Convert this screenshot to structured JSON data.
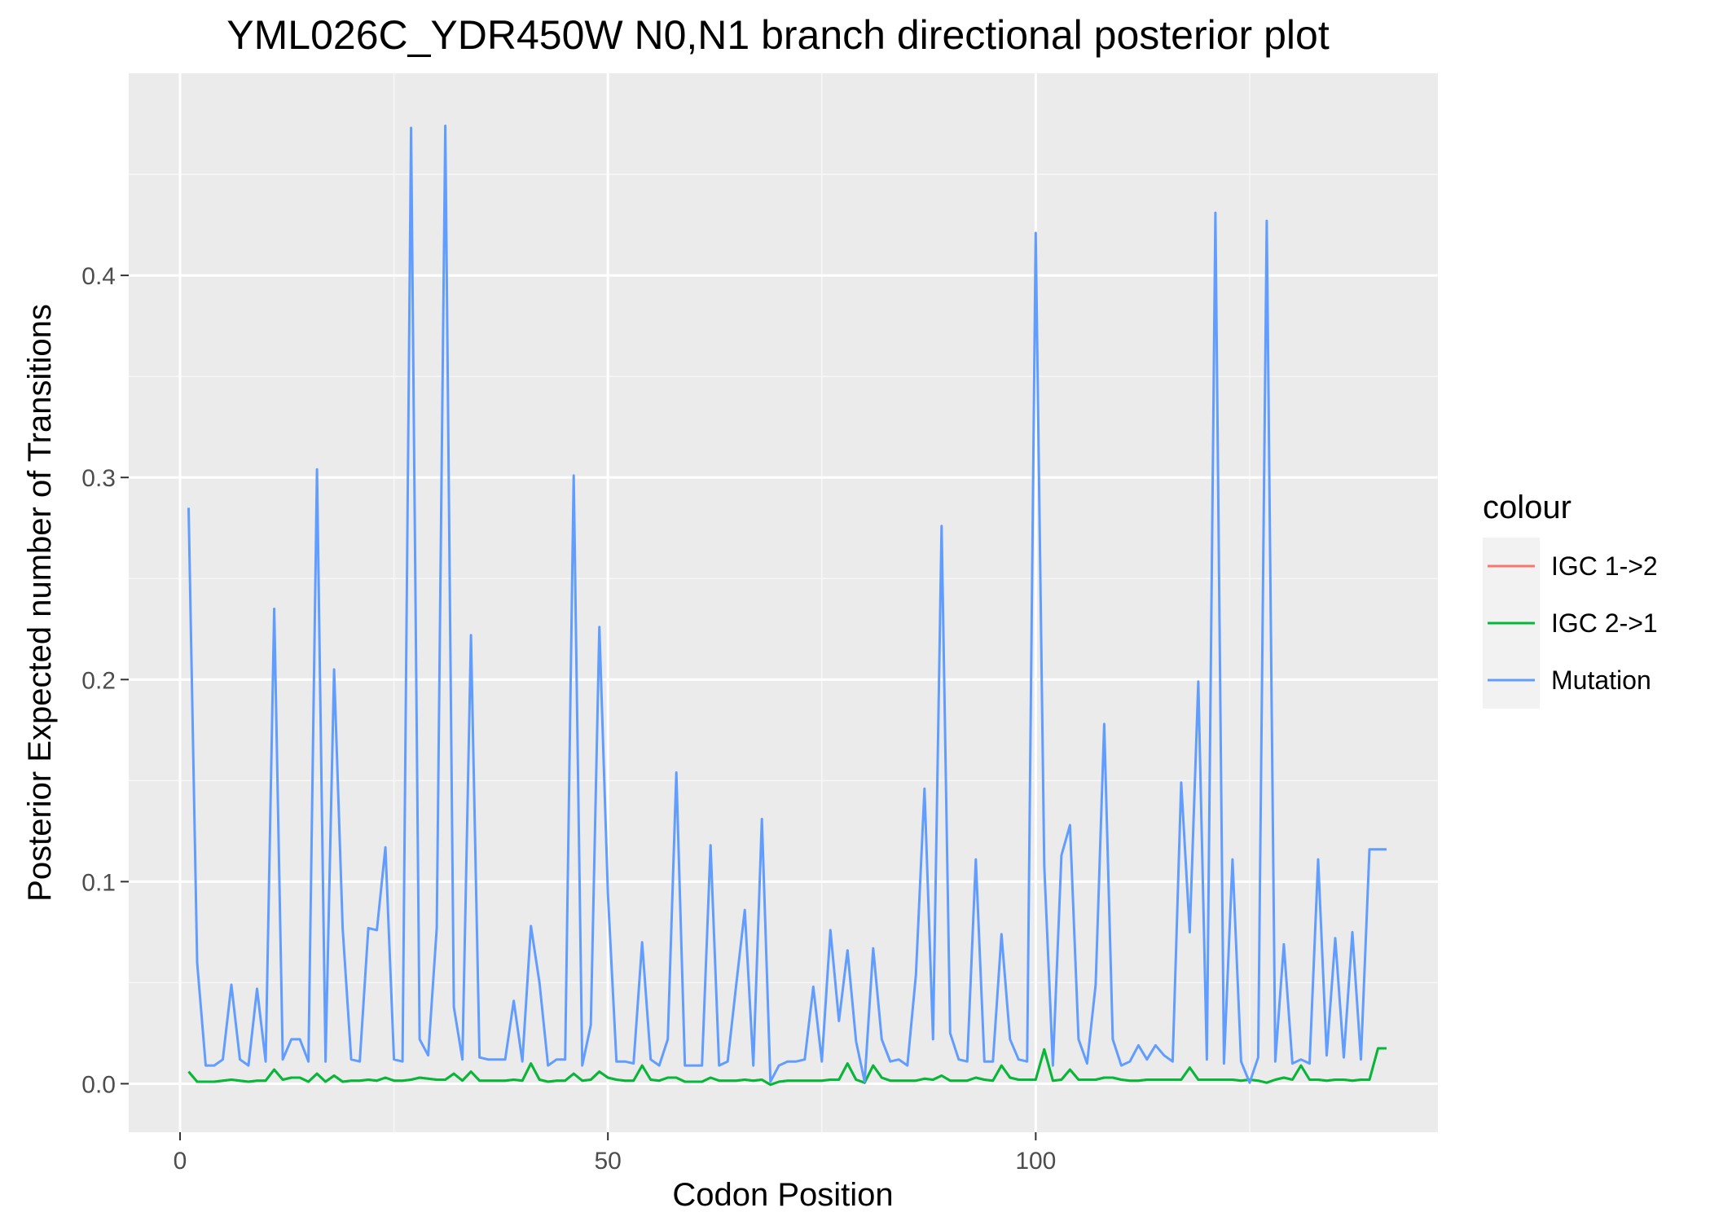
{
  "chart_data": {
    "type": "line",
    "title": "YML026C_YDR450W N0,N1 branch directional posterior plot",
    "xlabel": "Codon Position",
    "ylabel": "Posterior Expected number of Transitions",
    "xlim": [
      -6,
      147
    ],
    "ylim": [
      -0.024,
      0.5
    ],
    "xticks": [
      0,
      50,
      100
    ],
    "xtick_labels": [
      "0",
      "50",
      "100"
    ],
    "yticks": [
      0.0,
      0.1,
      0.2,
      0.3,
      0.4
    ],
    "ytick_labels": [
      "0.0",
      "0.1",
      "0.2",
      "0.3",
      "0.4"
    ],
    "grid": true,
    "legend": {
      "title": "colour",
      "placement": "right",
      "entries": [
        "IGC 1->2",
        "IGC 2->1",
        "Mutation"
      ]
    },
    "series": [
      {
        "name": "IGC 1->2",
        "color": "#F8766D",
        "x": [
          1,
          2,
          3,
          4,
          5,
          6,
          7,
          8,
          9,
          10,
          11,
          12,
          13,
          14,
          15,
          16,
          17,
          18,
          19,
          20,
          21,
          22,
          23,
          24,
          25,
          26,
          27,
          28,
          29,
          30,
          31,
          32,
          33,
          34,
          35,
          36,
          37,
          38,
          39,
          40,
          41,
          42,
          43,
          44,
          45,
          46,
          47,
          48,
          49,
          50,
          51,
          52,
          53,
          54,
          55,
          56,
          57,
          58,
          59,
          60,
          61,
          62,
          63,
          64,
          65,
          66,
          67,
          68,
          69,
          70,
          71,
          72,
          73,
          74,
          75,
          76,
          77,
          78,
          79,
          80,
          81,
          82,
          83,
          84,
          85,
          86,
          87,
          88,
          89,
          90,
          91,
          92,
          93,
          94,
          95,
          96,
          97,
          98,
          99,
          100,
          101,
          102,
          103,
          104,
          105,
          106,
          107,
          108,
          109,
          110,
          111,
          112,
          113,
          114,
          115,
          116,
          117,
          118,
          119,
          120,
          121,
          122,
          123,
          124,
          125,
          126,
          127,
          128,
          129,
          130,
          131,
          132,
          133,
          134,
          135,
          136,
          137,
          138,
          139,
          140,
          141
        ],
        "values": [
          0.006,
          0.001,
          0.001,
          0.001,
          0.0015,
          0.002,
          0.0015,
          0.001,
          0.0015,
          0.0015,
          0.007,
          0.002,
          0.003,
          0.003,
          0.001,
          0.005,
          0.001,
          0.004,
          0.001,
          0.0015,
          0.0015,
          0.002,
          0.0015,
          0.003,
          0.0015,
          0.0015,
          0.002,
          0.003,
          0.0025,
          0.002,
          0.002,
          0.005,
          0.0015,
          0.006,
          0.0015,
          0.0015,
          0.0015,
          0.0015,
          0.002,
          0.0015,
          0.01,
          0.002,
          0.001,
          0.0015,
          0.0015,
          0.005,
          0.0015,
          0.002,
          0.006,
          0.003,
          0.002,
          0.0015,
          0.0015,
          0.009,
          0.002,
          0.0015,
          0.003,
          0.003,
          0.001,
          0.001,
          0.001,
          0.003,
          0.0015,
          0.0015,
          0.0015,
          0.002,
          0.0015,
          0.002,
          -0.0005,
          0.001,
          0.0015,
          0.0015,
          0.0015,
          0.0015,
          0.0015,
          0.002,
          0.002,
          0.01,
          0.002,
          0.0005,
          0.009,
          0.003,
          0.0015,
          0.0015,
          0.0015,
          0.0015,
          0.0025,
          0.002,
          0.004,
          0.0015,
          0.0015,
          0.0015,
          0.003,
          0.002,
          0.0015,
          0.009,
          0.003,
          0.002,
          0.002,
          0.002,
          0.017,
          0.0015,
          0.002,
          0.007,
          0.002,
          0.002,
          0.002,
          0.003,
          0.003,
          0.002,
          0.0015,
          0.0015,
          0.002,
          0.002,
          0.002,
          0.002,
          0.002,
          0.008,
          0.002,
          0.002,
          0.002,
          0.002,
          0.002,
          0.0015,
          0.002,
          0.0015,
          0.0005,
          0.002,
          0.003,
          0.002,
          0.009,
          0.002,
          0.002,
          0.0015,
          0.002,
          0.002,
          0.0015,
          0.002,
          0.002,
          0.0175,
          0.0175
        ]
      },
      {
        "name": "IGC 2->1",
        "color": "#00BA38",
        "x": [
          1,
          2,
          3,
          4,
          5,
          6,
          7,
          8,
          9,
          10,
          11,
          12,
          13,
          14,
          15,
          16,
          17,
          18,
          19,
          20,
          21,
          22,
          23,
          24,
          25,
          26,
          27,
          28,
          29,
          30,
          31,
          32,
          33,
          34,
          35,
          36,
          37,
          38,
          39,
          40,
          41,
          42,
          43,
          44,
          45,
          46,
          47,
          48,
          49,
          50,
          51,
          52,
          53,
          54,
          55,
          56,
          57,
          58,
          59,
          60,
          61,
          62,
          63,
          64,
          65,
          66,
          67,
          68,
          69,
          70,
          71,
          72,
          73,
          74,
          75,
          76,
          77,
          78,
          79,
          80,
          81,
          82,
          83,
          84,
          85,
          86,
          87,
          88,
          89,
          90,
          91,
          92,
          93,
          94,
          95,
          96,
          97,
          98,
          99,
          100,
          101,
          102,
          103,
          104,
          105,
          106,
          107,
          108,
          109,
          110,
          111,
          112,
          113,
          114,
          115,
          116,
          117,
          118,
          119,
          120,
          121,
          122,
          123,
          124,
          125,
          126,
          127,
          128,
          129,
          130,
          131,
          132,
          133,
          134,
          135,
          136,
          137,
          138,
          139,
          140,
          141
        ],
        "values": [
          0.006,
          0.001,
          0.001,
          0.001,
          0.0015,
          0.002,
          0.0015,
          0.001,
          0.0015,
          0.0015,
          0.007,
          0.002,
          0.003,
          0.003,
          0.001,
          0.005,
          0.001,
          0.004,
          0.001,
          0.0015,
          0.0015,
          0.002,
          0.0015,
          0.003,
          0.0015,
          0.0015,
          0.002,
          0.003,
          0.0025,
          0.002,
          0.002,
          0.005,
          0.0015,
          0.006,
          0.0015,
          0.0015,
          0.0015,
          0.0015,
          0.002,
          0.0015,
          0.01,
          0.002,
          0.001,
          0.0015,
          0.0015,
          0.005,
          0.0015,
          0.002,
          0.006,
          0.003,
          0.002,
          0.0015,
          0.0015,
          0.009,
          0.002,
          0.0015,
          0.003,
          0.003,
          0.001,
          0.001,
          0.001,
          0.003,
          0.0015,
          0.0015,
          0.0015,
          0.002,
          0.0015,
          0.002,
          -0.0005,
          0.001,
          0.0015,
          0.0015,
          0.0015,
          0.0015,
          0.0015,
          0.002,
          0.002,
          0.01,
          0.002,
          0.0005,
          0.009,
          0.003,
          0.0015,
          0.0015,
          0.0015,
          0.0015,
          0.0025,
          0.002,
          0.004,
          0.0015,
          0.0015,
          0.0015,
          0.003,
          0.002,
          0.0015,
          0.009,
          0.003,
          0.002,
          0.002,
          0.002,
          0.017,
          0.0015,
          0.002,
          0.007,
          0.002,
          0.002,
          0.002,
          0.003,
          0.003,
          0.002,
          0.0015,
          0.0015,
          0.002,
          0.002,
          0.002,
          0.002,
          0.002,
          0.008,
          0.002,
          0.002,
          0.002,
          0.002,
          0.002,
          0.0015,
          0.002,
          0.0015,
          0.0005,
          0.002,
          0.003,
          0.002,
          0.009,
          0.002,
          0.002,
          0.0015,
          0.002,
          0.002,
          0.0015,
          0.002,
          0.002,
          0.0175,
          0.0175
        ]
      },
      {
        "name": "Mutation",
        "color": "#619CFF",
        "x": [
          1,
          2,
          3,
          4,
          5,
          6,
          7,
          8,
          9,
          10,
          11,
          12,
          13,
          14,
          15,
          16,
          17,
          18,
          19,
          20,
          21,
          22,
          23,
          24,
          25,
          26,
          27,
          28,
          29,
          30,
          31,
          32,
          33,
          34,
          35,
          36,
          37,
          38,
          39,
          40,
          41,
          42,
          43,
          44,
          45,
          46,
          47,
          48,
          49,
          50,
          51,
          52,
          53,
          54,
          55,
          56,
          57,
          58,
          59,
          60,
          61,
          62,
          63,
          64,
          65,
          66,
          67,
          68,
          69,
          70,
          71,
          72,
          73,
          74,
          75,
          76,
          77,
          78,
          79,
          80,
          81,
          82,
          83,
          84,
          85,
          86,
          87,
          88,
          89,
          90,
          91,
          92,
          93,
          94,
          95,
          96,
          97,
          98,
          99,
          100,
          101,
          102,
          103,
          104,
          105,
          106,
          107,
          108,
          109,
          110,
          111,
          112,
          113,
          114,
          115,
          116,
          117,
          118,
          119,
          120,
          121,
          122,
          123,
          124,
          125,
          126,
          127,
          128,
          129,
          130,
          131,
          132,
          133,
          134,
          135,
          136,
          137,
          138,
          139,
          140,
          141
        ],
        "values": [
          0.285,
          0.06,
          0.009,
          0.009,
          0.012,
          0.049,
          0.012,
          0.009,
          0.047,
          0.011,
          0.235,
          0.012,
          0.022,
          0.022,
          0.011,
          0.304,
          0.011,
          0.205,
          0.077,
          0.012,
          0.011,
          0.077,
          0.076,
          0.117,
          0.012,
          0.011,
          0.473,
          0.022,
          0.014,
          0.077,
          0.474,
          0.038,
          0.012,
          0.222,
          0.013,
          0.012,
          0.012,
          0.012,
          0.041,
          0.011,
          0.078,
          0.05,
          0.009,
          0.012,
          0.012,
          0.301,
          0.009,
          0.029,
          0.226,
          0.094,
          0.011,
          0.011,
          0.01,
          0.07,
          0.012,
          0.009,
          0.022,
          0.154,
          0.009,
          0.009,
          0.009,
          0.118,
          0.009,
          0.011,
          0.049,
          0.086,
          0.009,
          0.131,
          0.001,
          0.009,
          0.011,
          0.011,
          0.012,
          0.048,
          0.011,
          0.076,
          0.031,
          0.066,
          0.021,
          0.001,
          0.067,
          0.022,
          0.011,
          0.012,
          0.009,
          0.054,
          0.146,
          0.022,
          0.276,
          0.025,
          0.012,
          0.011,
          0.111,
          0.011,
          0.011,
          0.074,
          0.022,
          0.012,
          0.011,
          0.421,
          0.108,
          0.009,
          0.113,
          0.128,
          0.022,
          0.01,
          0.049,
          0.178,
          0.022,
          0.009,
          0.011,
          0.019,
          0.012,
          0.019,
          0.014,
          0.011,
          0.149,
          0.075,
          0.199,
          0.012,
          0.431,
          0.01,
          0.111,
          0.011,
          0.0005,
          0.013,
          0.427,
          0.011,
          0.069,
          0.01,
          0.012,
          0.01,
          0.111,
          0.014,
          0.072,
          0.013,
          0.075,
          0.012,
          0.116,
          0.116,
          0.116
        ]
      }
    ]
  }
}
